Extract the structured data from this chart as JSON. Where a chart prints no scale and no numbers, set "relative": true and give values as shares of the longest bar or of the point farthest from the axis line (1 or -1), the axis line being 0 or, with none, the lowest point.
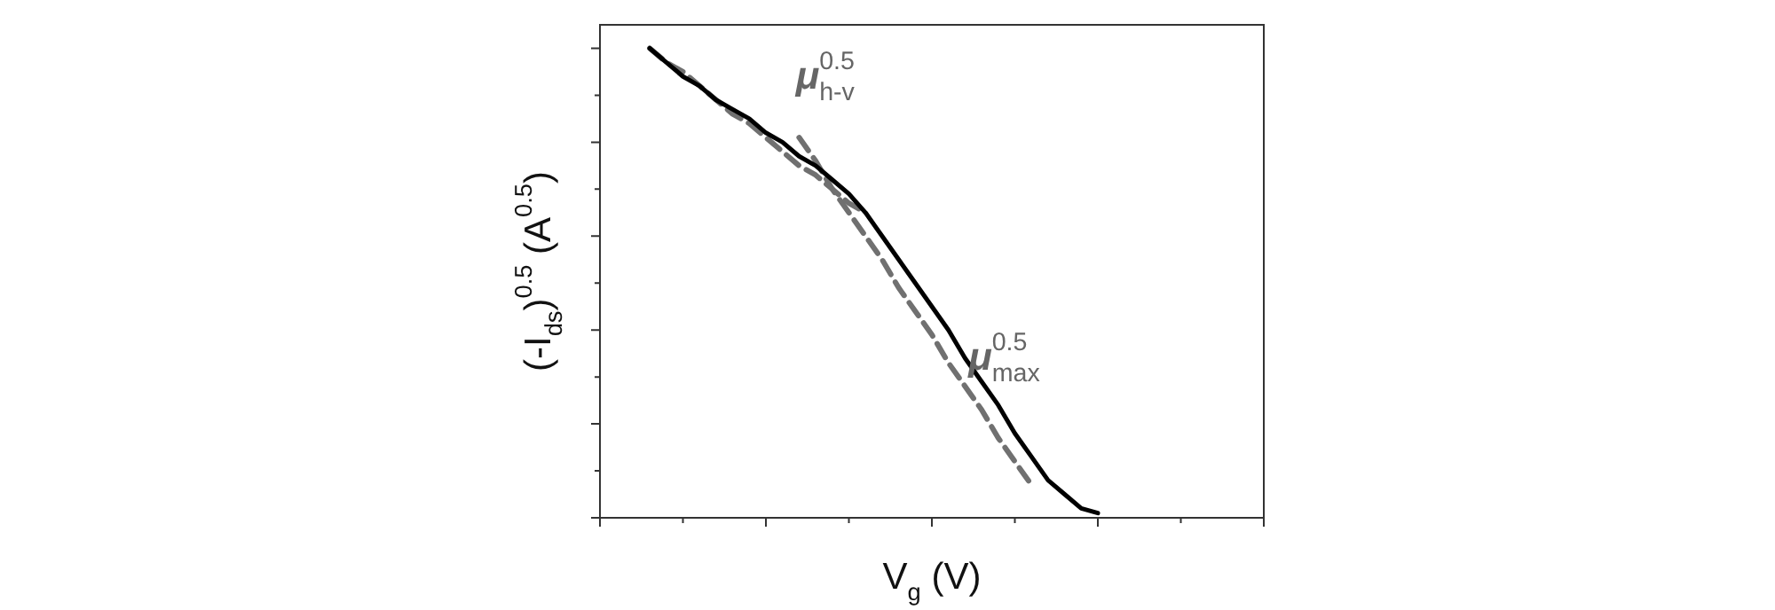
{
  "chart_data": {
    "type": "line",
    "relative": true,
    "xlabel": "V$_{g}$ (V)",
    "ylabel": "(-I$_{ds}$)$^{0.5}$ (A$^{0.5}$)",
    "categories": [
      null,
      null,
      null,
      null,
      null,
      null,
      null,
      null,
      null,
      null,
      null,
      null,
      null,
      null,
      null,
      null,
      null,
      null,
      null,
      null,
      null,
      null,
      null,
      null,
      null,
      null,
      null,
      null,
      null,
      null,
      null,
      null,
      null,
      null,
      null,
      null,
      null,
      null,
      null,
      null,
      null
    ],
    "series": [
      {
        "color": "#000000",
        "line_style": "solid",
        "values": [
          null,
          null,
          null,
          1.0,
          0.97,
          0.94,
          0.92,
          0.89,
          0.87,
          0.85,
          0.82,
          0.8,
          0.77,
          0.75,
          0.72,
          0.69,
          0.65,
          0.6,
          0.55,
          0.5,
          0.45,
          0.4,
          0.34,
          0.29,
          0.24,
          0.18,
          0.13,
          0.08,
          0.05,
          0.02,
          0.01,
          null,
          null,
          null,
          null,
          null,
          null,
          null,
          null,
          null,
          null
        ]
      },
      {
        "color": "#707070",
        "line_style": "dashed",
        "values": [
          null,
          null,
          null,
          1.0,
          0.97,
          0.95,
          0.92,
          0.89,
          0.86,
          0.84,
          0.81,
          0.78,
          0.75,
          0.73,
          0.7,
          0.67,
          0.65,
          null,
          null,
          null,
          null,
          null,
          null,
          null,
          null,
          null,
          null,
          null,
          null,
          null,
          null,
          null,
          null,
          null,
          null,
          null,
          null,
          null,
          null,
          null,
          null
        ]
      },
      {
        "color": "#707070",
        "line_style": "dashed",
        "values": [
          null,
          null,
          null,
          null,
          null,
          null,
          null,
          null,
          null,
          null,
          null,
          null,
          0.81,
          0.76,
          0.7,
          0.65,
          0.6,
          0.55,
          0.49,
          0.44,
          0.39,
          0.33,
          0.28,
          0.23,
          0.17,
          0.12,
          0.07,
          null,
          null,
          null,
          null,
          null,
          null,
          null,
          null,
          null,
          null,
          null,
          null,
          null,
          null
        ]
      }
    ],
    "annotations": [
      "μ$^{0.5}$$_{h-v}$",
      "μ$^{0.5}$$_{max}$"
    ]
  }
}
